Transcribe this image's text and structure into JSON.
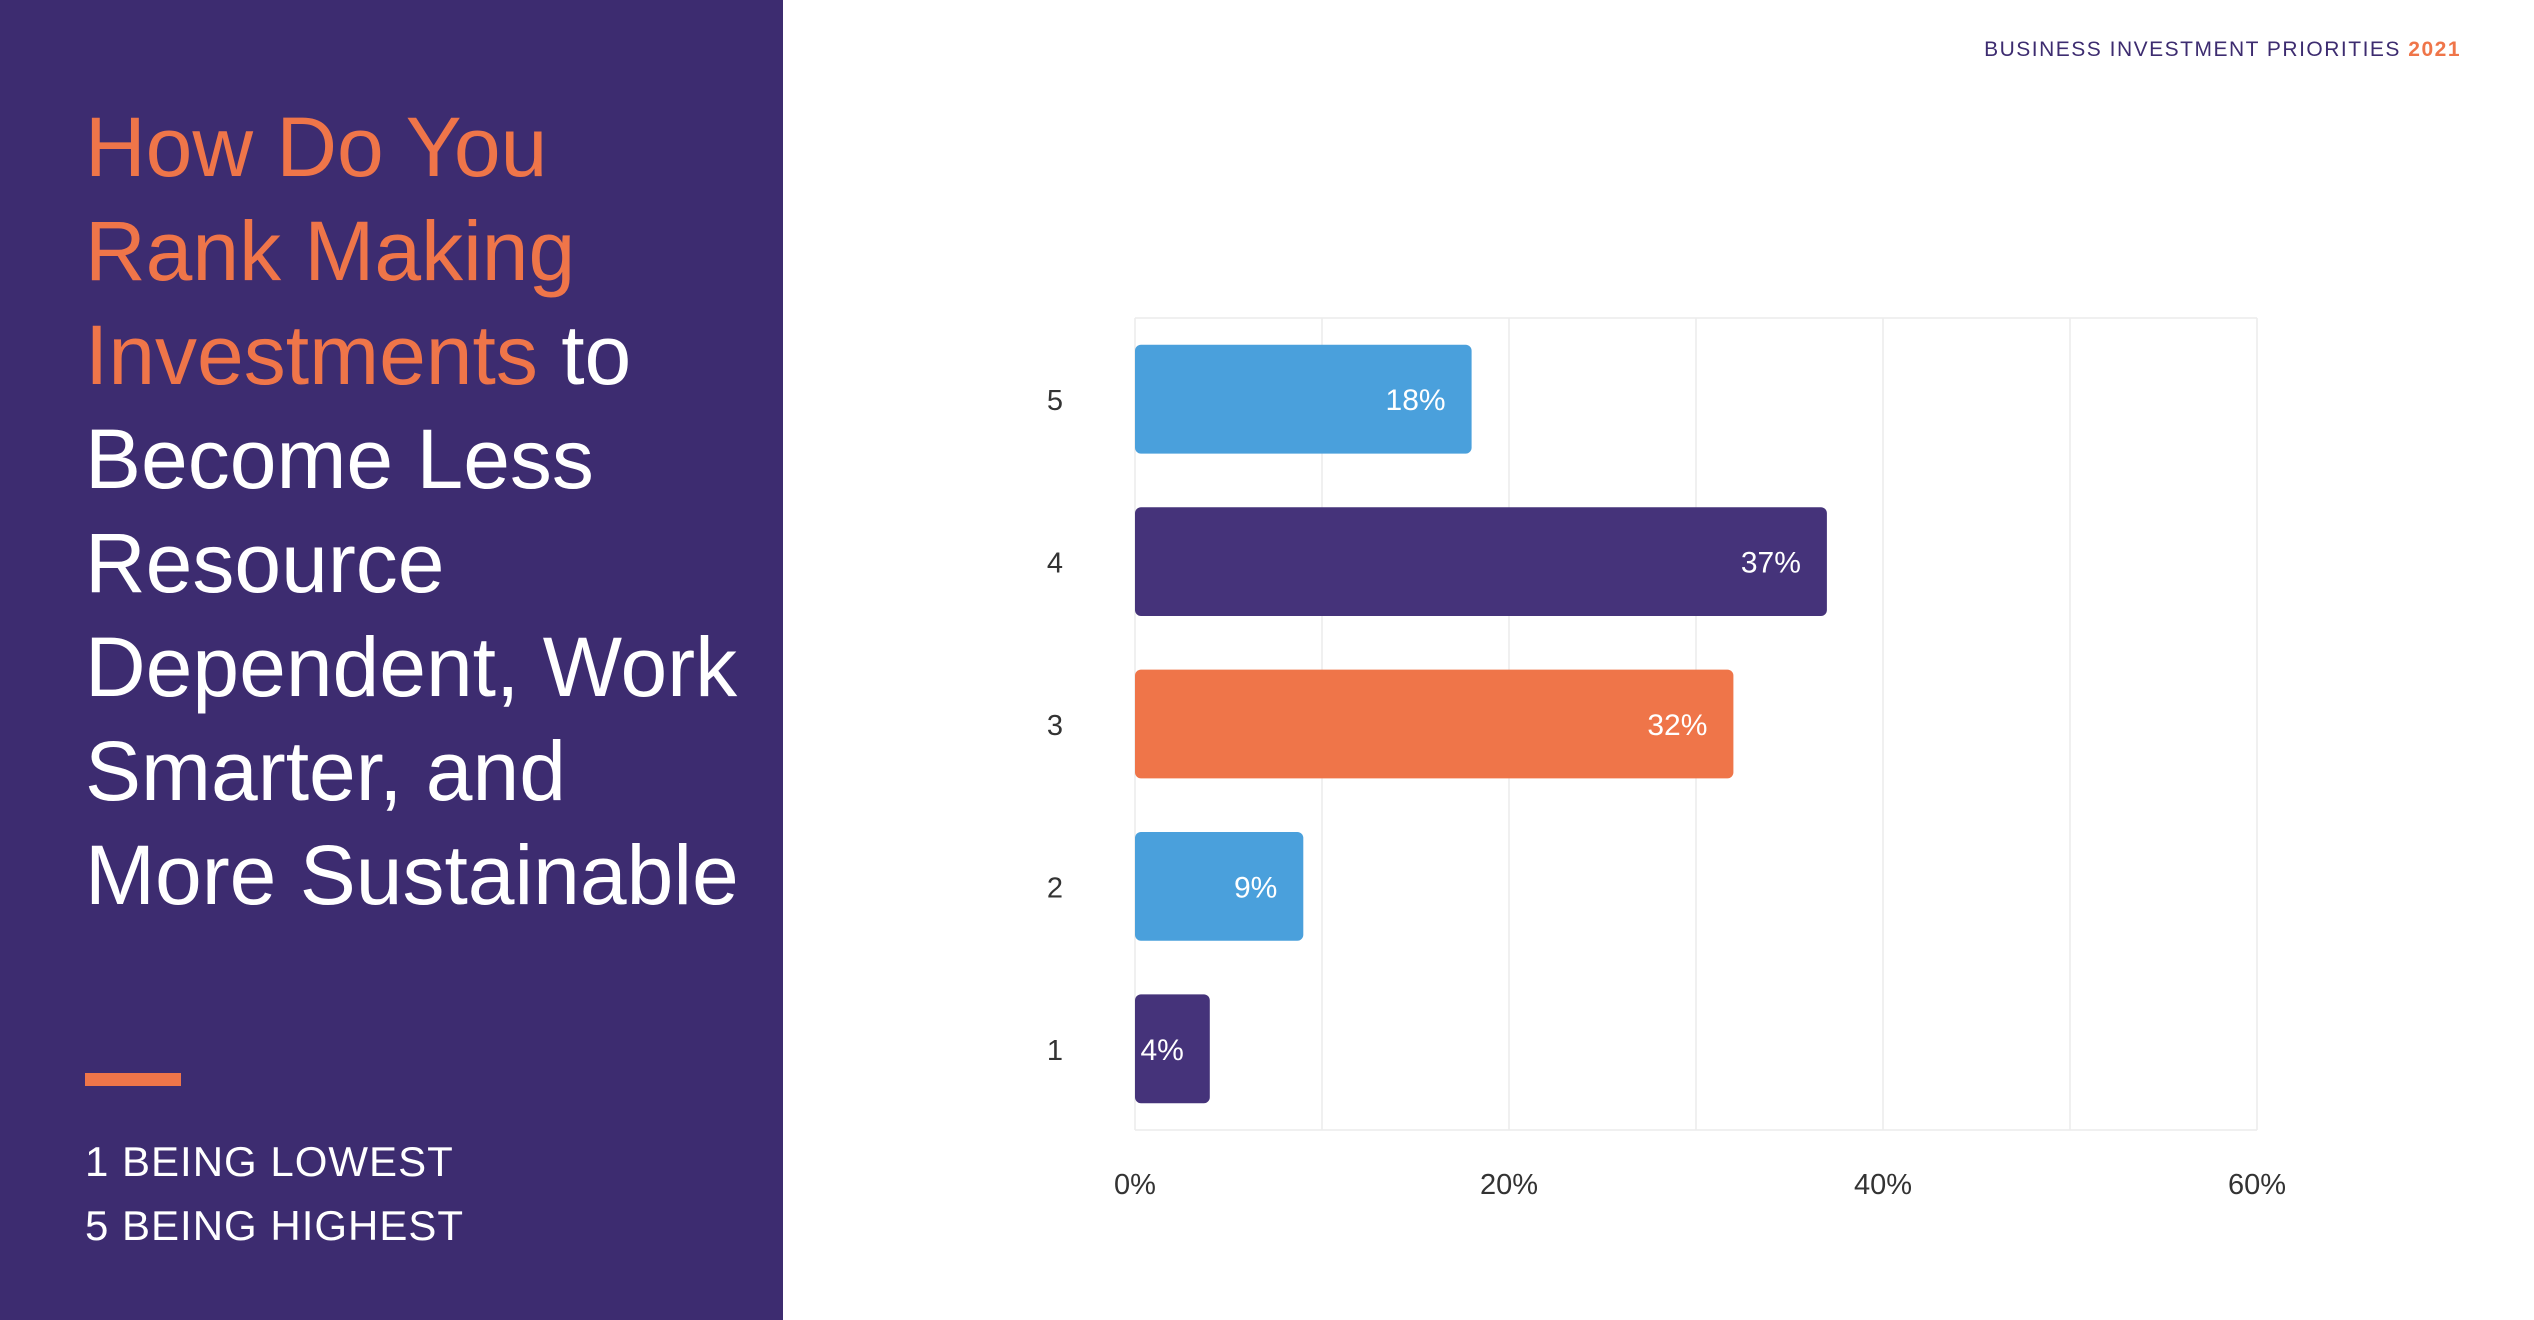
{
  "sidebar": {
    "title_highlight": "How Do You Rank Making Investments",
    "title_rest": "to Become Less Resource Dependent, Work Smarter, and More Sustainable",
    "note_lowest": "1 BEING LOWEST",
    "note_highest": "5 BEING HIGHEST"
  },
  "header": {
    "report_title": "BUSINESS INVESTMENT PRIORITIES",
    "report_year": "2021"
  },
  "colors": {
    "panel": "#3d2c70",
    "accent": "#ef7549",
    "blue": "#4aa0dc",
    "purple": "#45337a",
    "orange": "#ef7549"
  },
  "chart_data": {
    "type": "bar",
    "orientation": "horizontal",
    "categories": [
      "5",
      "4",
      "3",
      "2",
      "1"
    ],
    "values": [
      18,
      37,
      32,
      9,
      4
    ],
    "data_labels": [
      "18%",
      "37%",
      "32%",
      "9%",
      "4%"
    ],
    "bar_colors": [
      "#4aa0dc",
      "#45337a",
      "#ef7549",
      "#4aa0dc",
      "#45337a"
    ],
    "xlim": [
      0,
      60
    ],
    "x_ticks": [
      0,
      20,
      40,
      60
    ],
    "x_tick_labels": [
      "0%",
      "20%",
      "40%",
      "60%"
    ],
    "grid": true,
    "title": "",
    "xlabel": "",
    "ylabel": ""
  }
}
